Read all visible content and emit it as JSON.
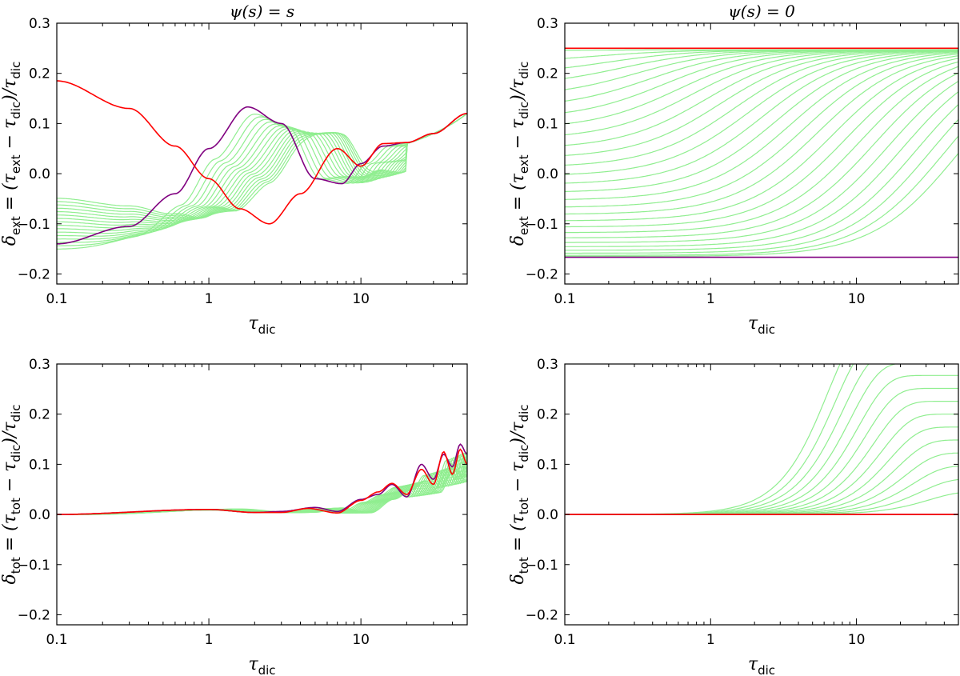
{
  "chart_data": [
    {
      "id": "top-left",
      "type": "line",
      "title": "ψ(s) = s",
      "xlabel": "τ_dic",
      "ylabel": "δ_ext = (τ_ext − τ_dic)/τ_dic",
      "xscale": "log",
      "xlim": [
        0.1,
        50
      ],
      "ylim": [
        -0.22,
        0.3
      ],
      "xticks": [
        0.1,
        1,
        10
      ],
      "xtick_labels": [
        "0.1",
        "1",
        "10"
      ],
      "yticks": [
        -0.2,
        -0.1,
        0.0,
        0.1,
        0.2,
        0.3
      ],
      "ytick_labels": [
        "−0.2",
        "−0.1",
        "0.0",
        "0.1",
        "0.2",
        "0.3"
      ],
      "model": "ext_s",
      "family_count": 16,
      "colors": {
        "family": "#90ee90",
        "purple": "#800080",
        "red": "#ff0000"
      },
      "series": [
        {
          "name": "purple",
          "x": [
            0.1,
            0.3,
            0.6,
            1.0,
            1.8,
            3.0,
            5.0,
            7.5,
            10,
            14,
            20,
            30,
            50
          ],
          "y": [
            -0.14,
            -0.105,
            -0.04,
            0.05,
            0.133,
            0.1,
            -0.01,
            -0.02,
            0.02,
            0.055,
            0.062,
            0.08,
            0.12
          ]
        },
        {
          "name": "red",
          "x": [
            0.1,
            0.3,
            0.6,
            1.0,
            1.6,
            2.5,
            4.0,
            7.0,
            10,
            14,
            20,
            30,
            50
          ],
          "y": [
            0.185,
            0.13,
            0.055,
            -0.01,
            -0.07,
            -0.1,
            -0.04,
            0.05,
            0.015,
            0.06,
            0.062,
            0.08,
            0.12
          ]
        }
      ]
    },
    {
      "id": "top-right",
      "type": "line",
      "title": "ψ(s) = 0",
      "xlabel": "τ_dic",
      "ylabel": "δ_ext = (τ_ext − τ_dic)/τ_dic",
      "xscale": "log",
      "xlim": [
        0.1,
        50
      ],
      "ylim": [
        -0.22,
        0.3
      ],
      "xticks": [
        0.1,
        1,
        10
      ],
      "xtick_labels": [
        "0.1",
        "1",
        "10"
      ],
      "yticks": [
        -0.2,
        -0.1,
        0.0,
        0.1,
        0.2,
        0.3
      ],
      "ytick_labels": [
        "−0.2",
        "−0.1",
        "0.0",
        "0.1",
        "0.2",
        "0.3"
      ],
      "model": "ext_0",
      "family_count": 28,
      "colors": {
        "family": "#90ee90",
        "purple": "#800080",
        "red": "#ff0000"
      },
      "series": [
        {
          "name": "red",
          "x": [
            0.1,
            50
          ],
          "y": [
            0.25,
            0.25
          ]
        },
        {
          "name": "purple",
          "x": [
            0.1,
            50
          ],
          "y": [
            -0.1667,
            -0.1667
          ]
        }
      ]
    },
    {
      "id": "bottom-left",
      "type": "line",
      "title": "",
      "xlabel": "τ_dic",
      "ylabel": "δ_tot = (τ_tot − τ_dic)/τ_dic",
      "xscale": "log",
      "xlim": [
        0.1,
        50
      ],
      "ylim": [
        -0.22,
        0.3
      ],
      "xticks": [
        0.1,
        1,
        10
      ],
      "xtick_labels": [
        "0.1",
        "1",
        "10"
      ],
      "yticks": [
        -0.2,
        -0.1,
        0.0,
        0.1,
        0.2,
        0.3
      ],
      "ytick_labels": [
        "−0.2",
        "−0.1",
        "0.0",
        "0.1",
        "0.2",
        "0.3"
      ],
      "model": "tot_s",
      "family_count": 16,
      "colors": {
        "family": "#90ee90",
        "purple": "#800080",
        "red": "#ff0000"
      },
      "series": [
        {
          "name": "purple",
          "x": [
            0.1,
            1,
            2,
            3,
            5,
            7,
            10,
            13,
            16,
            20,
            25,
            30,
            35,
            40,
            45,
            50
          ],
          "y": [
            0.0,
            0.01,
            0.004,
            0.006,
            0.014,
            0.006,
            0.03,
            0.04,
            0.06,
            0.035,
            0.1,
            0.07,
            0.12,
            0.095,
            0.14,
            0.12
          ]
        },
        {
          "name": "red",
          "x": [
            0.1,
            1,
            2,
            3,
            4.5,
            7,
            10,
            13,
            16,
            20,
            25,
            30,
            35,
            40,
            45,
            50
          ],
          "y": [
            0.0,
            0.01,
            0.004,
            0.004,
            0.012,
            0.003,
            0.028,
            0.045,
            0.062,
            0.04,
            0.09,
            0.06,
            0.125,
            0.08,
            0.13,
            0.1
          ]
        }
      ]
    },
    {
      "id": "bottom-right",
      "type": "line",
      "title": "",
      "xlabel": "τ_dic",
      "ylabel": "δ_tot = (τ_tot − τ_dic)/τ_dic",
      "xscale": "log",
      "xlim": [
        0.1,
        50
      ],
      "ylim": [
        -0.22,
        0.3
      ],
      "xticks": [
        0.1,
        1,
        10
      ],
      "xtick_labels": [
        "0.1",
        "1",
        "10"
      ],
      "yticks": [
        -0.2,
        -0.1,
        0.0,
        0.1,
        0.2,
        0.3
      ],
      "ytick_labels": [
        "−0.2",
        "−0.1",
        "0.0",
        "0.1",
        "0.2",
        "0.3"
      ],
      "model": "tot_0",
      "family_count": 14,
      "colors": {
        "family": "#90ee90",
        "purple": "#800080",
        "red": "#ff0000"
      },
      "series": [
        {
          "name": "purple",
          "x": [
            0.1,
            50
          ],
          "y": [
            0.0,
            0.0
          ]
        },
        {
          "name": "red",
          "x": [
            0.1,
            50
          ],
          "y": [
            0.0,
            0.0
          ]
        }
      ]
    }
  ]
}
